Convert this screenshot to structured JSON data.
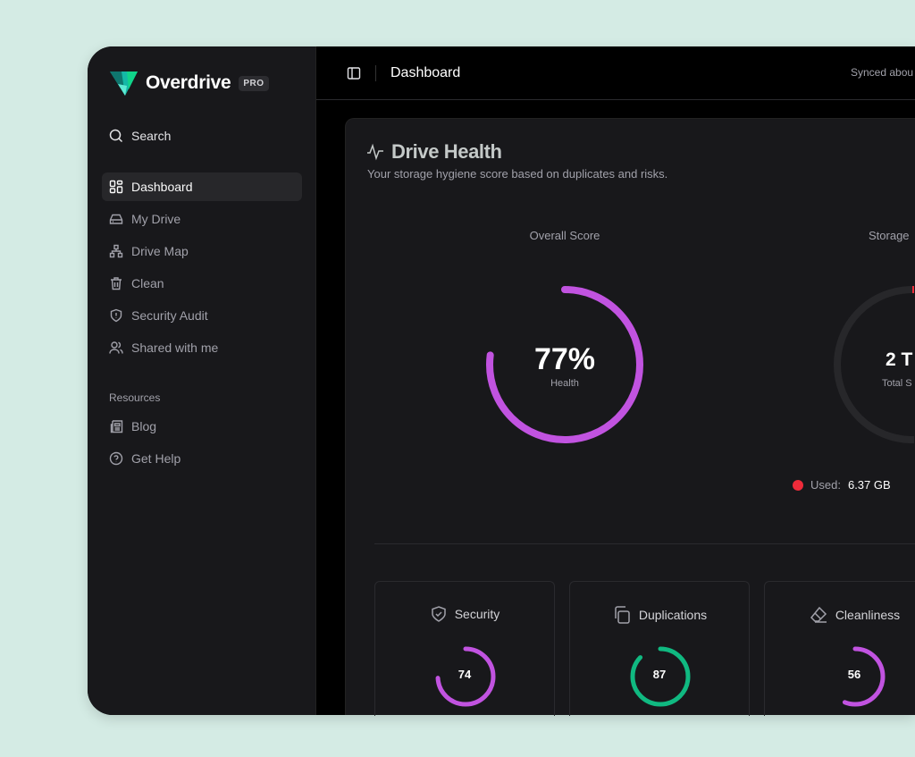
{
  "app": {
    "name": "Overdrive",
    "badge": "PRO"
  },
  "sidebar": {
    "search": "Search",
    "items": [
      {
        "label": "Dashboard",
        "icon": "dashboard-icon",
        "active": true
      },
      {
        "label": "My Drive",
        "icon": "drive-icon"
      },
      {
        "label": "Drive Map",
        "icon": "sitemap-icon"
      },
      {
        "label": "Clean",
        "icon": "trash-icon"
      },
      {
        "label": "Security Audit",
        "icon": "shield-alert-icon"
      },
      {
        "label": "Shared with me",
        "icon": "users-icon"
      }
    ],
    "resources_heading": "Resources",
    "resources": [
      {
        "label": "Blog",
        "icon": "newspaper-icon"
      },
      {
        "label": "Get Help",
        "icon": "help-circle-icon"
      }
    ]
  },
  "header": {
    "title": "Dashboard",
    "sync": "Synced abou"
  },
  "health": {
    "title": "Drive Health",
    "subtitle": "Your storage hygiene score based on duplicates and risks.",
    "overall": {
      "label": "Overall Score",
      "value_text": "77%",
      "caption": "Health",
      "value": 77
    },
    "storage": {
      "label": "Storage",
      "value_text": "2 T",
      "caption": "Total S",
      "used_label": "Used:",
      "used_value": "6.37 GB",
      "used_fraction": 0.003
    },
    "tiles": [
      {
        "label": "Security",
        "value": 74,
        "color": "#c153e0"
      },
      {
        "label": "Duplications",
        "value": 87,
        "color": "#10b981"
      },
      {
        "label": "Cleanliness",
        "value": 56,
        "color": "#c153e0"
      }
    ]
  },
  "colors": {
    "accent": "#c153e0",
    "green": "#10b981",
    "used": "#ef2b3a",
    "track": "#27272a"
  }
}
